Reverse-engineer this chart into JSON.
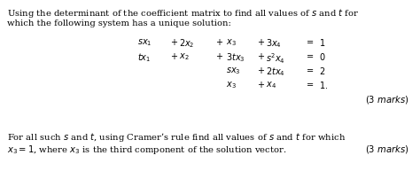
{
  "bg_color": "#ffffff",
  "text_color": "#000000",
  "figsize": [
    4.74,
    1.93
  ],
  "dpi": 100,
  "font_size_body": 7.2,
  "font_size_eq": 7.0,
  "font_size_marks": 7.2,
  "intro_line1": "Using the determinant of the coefficient matrix to find all values of $s$ and $t$ for",
  "intro_line2": "which the following system has a unique solution:",
  "footer_line1": "For all such $s$ and $t$, using Cramer’s rule find all values of $s$ and $t$ for which",
  "footer_line2_a": "$x_3 = 1$, where $x_3$ is the third component of the solution vector.",
  "marks1": "$(3$ $marks)$",
  "marks2": "$(3$ $marks)$"
}
